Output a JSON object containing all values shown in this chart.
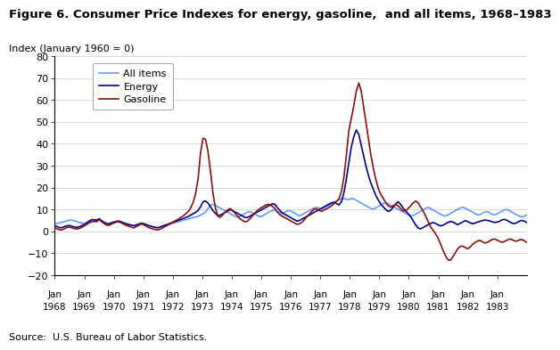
{
  "title": "Figure 6. Consumer Price Indexes for energy, gasoline,  and all items, 1968–1983",
  "ylabel": "Index (January 1960 = 0)",
  "source": "Source:  U.S. Bureau of Labor Statistics.",
  "ylim": [
    -20,
    80
  ],
  "yticks": [
    -20,
    -10,
    0,
    10,
    20,
    30,
    40,
    50,
    60,
    70,
    80
  ],
  "energy_color": "#00008B",
  "gasoline_color": "#8B1010",
  "allitems_color": "#6699FF",
  "energy_label": "Energy",
  "gasoline_label": "Gasoline",
  "allitems_label": "All items",
  "energy": [
    2.5,
    2.2,
    1.8,
    1.5,
    1.8,
    2.2,
    2.5,
    2.8,
    2.5,
    2.2,
    2.0,
    1.8,
    2.0,
    2.2,
    2.8,
    3.2,
    3.8,
    4.5,
    5.0,
    5.5,
    5.2,
    5.0,
    5.5,
    6.0,
    4.5,
    4.0,
    3.5,
    3.2,
    3.5,
    4.0,
    4.2,
    4.5,
    4.8,
    4.5,
    4.2,
    3.8,
    3.5,
    3.2,
    3.0,
    2.8,
    2.5,
    2.8,
    3.2,
    3.5,
    3.8,
    3.5,
    3.2,
    2.8,
    2.5,
    2.2,
    2.0,
    1.8,
    1.5,
    1.8,
    2.2,
    2.5,
    2.8,
    3.2,
    3.5,
    3.8,
    4.2,
    4.5,
    4.8,
    5.2,
    5.5,
    5.8,
    6.2,
    6.5,
    7.0,
    7.5,
    8.0,
    8.5,
    9.0,
    10.0,
    11.5,
    13.5,
    14.0,
    13.5,
    12.5,
    11.0,
    9.5,
    8.5,
    7.5,
    7.0,
    7.5,
    8.0,
    8.5,
    9.0,
    9.5,
    10.0,
    9.5,
    9.0,
    8.5,
    8.0,
    7.5,
    7.0,
    6.5,
    6.0,
    6.5,
    7.0,
    7.5,
    8.0,
    8.5,
    9.0,
    9.5,
    10.0,
    10.5,
    11.0,
    11.5,
    12.0,
    12.5,
    13.0,
    11.5,
    10.5,
    9.5,
    8.5,
    8.0,
    7.5,
    7.0,
    6.5,
    6.0,
    5.5,
    5.0,
    4.5,
    5.0,
    5.5,
    6.0,
    6.5,
    7.0,
    7.5,
    8.0,
    8.5,
    9.0,
    9.5,
    10.0,
    10.5,
    11.0,
    11.5,
    12.0,
    12.5,
    13.0,
    13.5,
    13.0,
    12.5,
    12.0,
    13.0,
    16.0,
    20.0,
    26.0,
    32.0,
    38.0,
    42.0,
    45.0,
    47.0,
    44.0,
    40.0,
    36.0,
    32.0,
    28.0,
    25.0,
    22.0,
    20.0,
    17.5,
    15.5,
    14.0,
    12.5,
    11.5,
    10.5,
    9.5,
    9.0,
    9.5,
    10.5,
    12.0,
    13.0,
    13.5,
    12.5,
    11.0,
    10.0,
    9.0,
    8.0,
    7.0,
    5.5,
    4.0,
    2.5,
    1.5,
    1.0,
    1.5,
    2.0,
    2.5,
    3.0,
    3.5,
    4.0,
    4.0,
    3.5,
    3.0,
    2.5,
    2.5,
    3.0,
    3.5,
    4.0,
    4.5,
    4.5,
    4.0,
    3.5,
    3.0,
    3.5,
    4.0,
    4.5,
    5.0,
    4.5,
    4.0,
    3.5,
    3.5,
    3.8,
    4.2,
    4.5,
    4.8,
    5.0,
    5.2,
    5.0,
    4.8,
    4.5,
    4.2,
    4.0,
    4.2,
    4.5,
    5.0,
    5.5,
    5.5,
    5.0,
    4.5,
    4.0,
    3.5,
    3.5,
    4.0,
    4.5,
    5.0,
    5.0,
    4.5,
    4.0
  ],
  "gasoline": [
    1.5,
    1.2,
    0.8,
    0.5,
    0.8,
    1.2,
    1.8,
    2.0,
    1.8,
    1.5,
    1.2,
    1.0,
    1.2,
    1.5,
    2.0,
    2.5,
    3.0,
    3.8,
    4.2,
    4.8,
    4.5,
    4.2,
    5.0,
    5.8,
    4.0,
    3.5,
    3.0,
    2.5,
    3.0,
    3.5,
    3.8,
    4.2,
    4.5,
    4.0,
    3.8,
    3.2,
    2.8,
    2.5,
    2.2,
    1.8,
    1.5,
    2.0,
    2.5,
    3.0,
    3.5,
    3.0,
    2.5,
    2.0,
    1.5,
    1.2,
    1.0,
    0.8,
    0.5,
    0.8,
    1.2,
    1.8,
    2.2,
    2.8,
    3.2,
    3.8,
    4.2,
    4.8,
    5.2,
    5.8,
    6.5,
    7.0,
    7.8,
    8.5,
    9.5,
    11.0,
    13.0,
    16.0,
    20.0,
    27.0,
    38.0,
    42.5,
    43.0,
    40.0,
    34.0,
    26.0,
    18.0,
    12.0,
    8.0,
    6.0,
    6.5,
    7.5,
    8.5,
    9.5,
    10.0,
    10.5,
    9.5,
    8.5,
    7.5,
    6.5,
    5.5,
    5.0,
    4.5,
    4.0,
    5.0,
    6.0,
    7.0,
    8.0,
    9.0,
    10.0,
    10.5,
    11.0,
    11.5,
    12.0,
    12.5,
    12.0,
    11.5,
    11.0,
    9.5,
    8.5,
    7.5,
    7.0,
    6.5,
    6.0,
    5.5,
    5.0,
    4.5,
    4.0,
    3.5,
    3.0,
    3.5,
    4.0,
    5.0,
    6.0,
    7.0,
    8.0,
    9.0,
    10.0,
    10.5,
    10.0,
    9.5,
    9.0,
    9.5,
    10.0,
    10.5,
    11.0,
    11.5,
    12.5,
    13.0,
    14.0,
    15.0,
    17.5,
    22.0,
    29.0,
    38.0,
    47.0,
    51.0,
    55.0,
    61.0,
    65.5,
    68.0,
    65.0,
    59.0,
    53.0,
    47.0,
    41.0,
    35.0,
    30.0,
    26.0,
    22.0,
    19.0,
    17.0,
    15.5,
    14.0,
    12.5,
    11.5,
    11.0,
    11.5,
    12.0,
    12.5,
    11.5,
    10.5,
    9.5,
    9.0,
    9.5,
    10.5,
    11.5,
    12.5,
    13.5,
    14.0,
    13.0,
    11.5,
    10.0,
    8.5,
    6.5,
    4.5,
    2.5,
    1.0,
    0.0,
    -1.5,
    -3.0,
    -5.0,
    -7.5,
    -9.5,
    -11.5,
    -13.0,
    -13.5,
    -12.5,
    -11.0,
    -9.5,
    -8.0,
    -7.0,
    -6.5,
    -7.0,
    -7.5,
    -8.0,
    -7.5,
    -6.5,
    -5.5,
    -5.0,
    -4.5,
    -4.0,
    -4.5,
    -5.0,
    -5.5,
    -5.0,
    -4.5,
    -4.0,
    -3.5,
    -3.5,
    -4.0,
    -4.5,
    -5.0,
    -5.0,
    -4.5,
    -4.0,
    -3.5,
    -3.5,
    -4.0,
    -4.5,
    -4.5,
    -4.0,
    -3.5,
    -4.0,
    -4.5,
    -5.0
  ],
  "allitems": [
    3.5,
    3.5,
    3.8,
    4.0,
    4.2,
    4.5,
    4.8,
    5.0,
    5.2,
    5.0,
    4.8,
    4.5,
    4.2,
    4.0,
    3.8,
    3.5,
    3.5,
    3.8,
    4.0,
    4.2,
    4.5,
    4.8,
    5.0,
    5.2,
    4.5,
    4.2,
    3.8,
    3.5,
    3.8,
    4.0,
    4.2,
    4.5,
    4.8,
    4.5,
    4.0,
    3.8,
    3.5,
    3.2,
    3.0,
    2.8,
    2.5,
    2.8,
    3.0,
    3.2,
    3.5,
    3.2,
    3.0,
    2.8,
    2.5,
    2.2,
    2.0,
    1.8,
    1.5,
    1.8,
    2.2,
    2.5,
    2.8,
    3.0,
    3.2,
    3.5,
    3.8,
    4.0,
    4.2,
    4.5,
    4.8,
    5.0,
    5.2,
    5.5,
    5.8,
    6.0,
    6.2,
    6.5,
    6.8,
    7.0,
    7.5,
    8.0,
    8.5,
    9.5,
    11.0,
    12.0,
    12.5,
    12.0,
    11.5,
    11.0,
    10.5,
    10.0,
    9.5,
    9.0,
    8.5,
    8.0,
    7.5,
    7.0,
    6.5,
    6.5,
    7.0,
    7.5,
    8.0,
    8.5,
    9.0,
    9.0,
    8.5,
    8.0,
    7.5,
    7.0,
    6.5,
    7.0,
    7.5,
    8.0,
    8.5,
    9.0,
    9.5,
    10.0,
    9.5,
    9.0,
    8.5,
    8.0,
    8.5,
    9.0,
    9.5,
    9.5,
    9.0,
    8.5,
    8.0,
    7.5,
    7.0,
    7.5,
    8.0,
    8.5,
    9.0,
    9.5,
    10.0,
    10.5,
    11.0,
    11.0,
    10.5,
    10.0,
    10.5,
    11.0,
    11.5,
    12.0,
    12.5,
    13.0,
    13.5,
    14.0,
    14.5,
    14.8,
    15.0,
    15.0,
    14.5,
    14.5,
    15.0,
    15.0,
    14.5,
    14.0,
    13.5,
    13.0,
    12.5,
    12.0,
    11.5,
    11.0,
    10.5,
    10.0,
    10.5,
    11.0,
    11.5,
    12.0,
    12.5,
    13.0,
    13.0,
    12.5,
    12.0,
    11.5,
    11.0,
    10.5,
    10.0,
    9.5,
    9.0,
    8.5,
    8.0,
    7.5,
    7.0,
    7.0,
    7.5,
    8.0,
    8.5,
    9.0,
    9.5,
    10.0,
    10.5,
    11.0,
    10.5,
    10.0,
    9.5,
    9.0,
    8.5,
    8.0,
    7.5,
    7.0,
    7.0,
    7.5,
    8.0,
    8.5,
    9.0,
    9.5,
    10.0,
    10.5,
    11.0,
    11.0,
    10.5,
    10.0,
    9.5,
    9.0,
    8.5,
    8.0,
    7.5,
    7.5,
    8.0,
    8.5,
    9.0,
    9.0,
    8.5,
    8.0,
    7.5,
    7.5,
    8.0,
    8.5,
    9.0,
    9.5,
    10.0,
    10.0,
    9.5,
    9.0,
    8.5,
    8.0,
    7.5,
    7.0,
    6.5,
    6.5,
    7.0,
    7.5
  ]
}
